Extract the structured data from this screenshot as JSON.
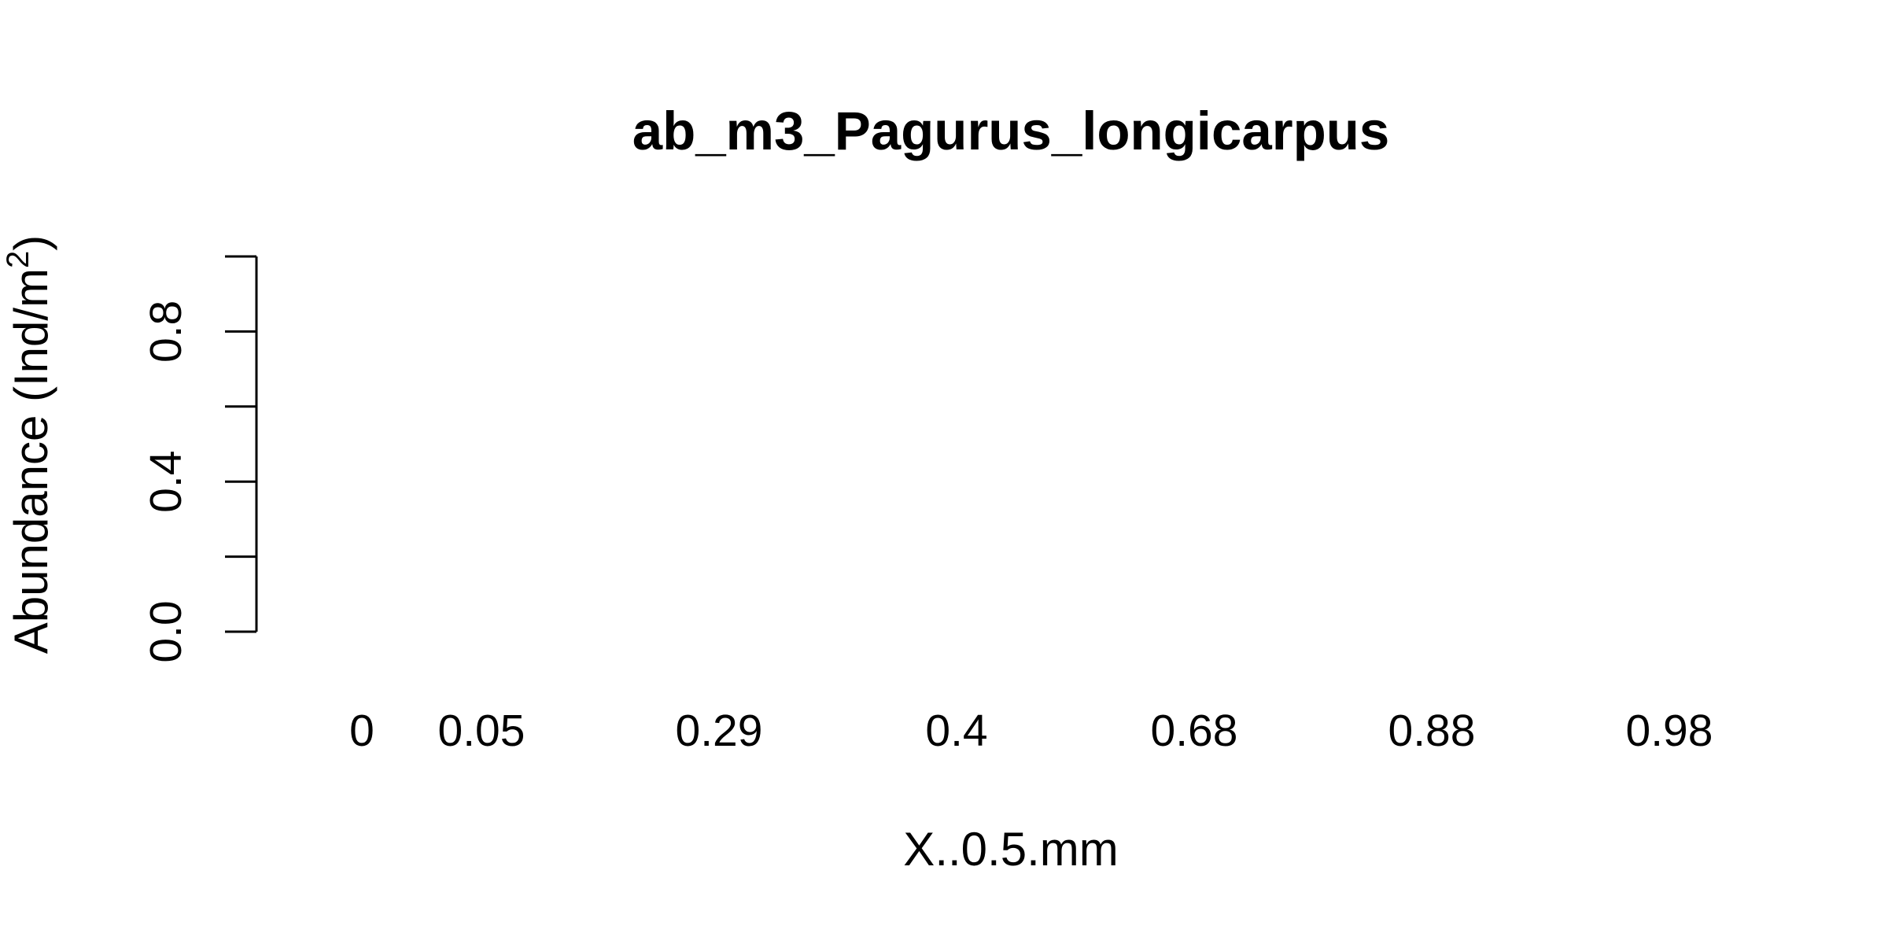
{
  "chart_data": {
    "type": "bar",
    "title": "ab_m3_Pagurus_longicarpus",
    "xlabel": "X..0.5.mm",
    "ylabel": "Abundance (Ind/m",
    "ylabel_superscript": "2",
    "ylabel_suffix": ")",
    "categories": [
      "0",
      "0.05",
      "0.29",
      "0.4",
      "0.68",
      "0.88",
      "0.98"
    ],
    "values": [
      0,
      0,
      0,
      0,
      0,
      0,
      0
    ],
    "ylim": [
      0,
      1
    ],
    "y_ticks": [
      0,
      0.2,
      0.4,
      0.6,
      0.8,
      1.0
    ],
    "y_tick_labels": [
      "0.0",
      "",
      "0.4",
      "",
      "0.8",
      ""
    ],
    "grid": false,
    "legend": "none",
    "colors": {
      "foreground": "#000000",
      "background": "#ffffff"
    }
  }
}
